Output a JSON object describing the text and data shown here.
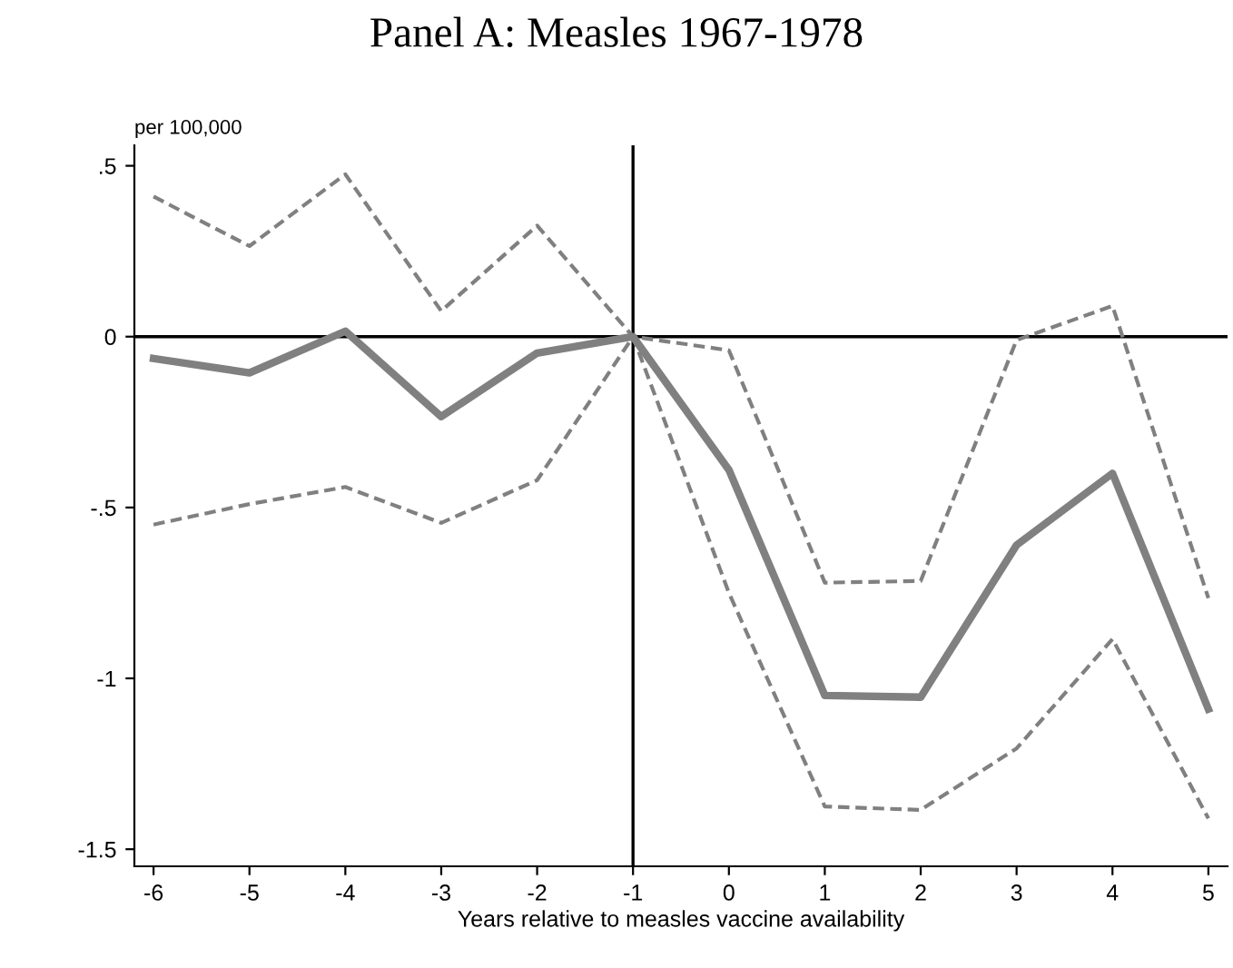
{
  "chart_data": {
    "type": "line",
    "title": "Panel A: Measles 1967-1978",
    "ylabel": "per 100,000",
    "xlabel": "Years relative to measles vaccine availability",
    "x": [
      -6,
      -5,
      -4,
      -3,
      -2,
      -1,
      0,
      1,
      2,
      3,
      4,
      5
    ],
    "series": [
      {
        "color": "#808080",
        "line_style": "solid",
        "values": [
          -0.064,
          -0.106,
          0.016,
          -0.234,
          -0.048,
          0,
          -0.39,
          -1.05,
          -1.055,
          -0.61,
          -0.4,
          -1.09
        ]
      },
      {
        "color": "#808080",
        "line_style": "dashed",
        "values": [
          0.41,
          0.265,
          0.475,
          0.075,
          0.325,
          0,
          -0.04,
          -0.72,
          -0.715,
          -0.01,
          0.09,
          -0.765
        ]
      },
      {
        "color": "#808080",
        "line_style": "dashed",
        "values": [
          -0.55,
          -0.49,
          -0.44,
          -0.545,
          -0.42,
          0,
          -0.75,
          -1.375,
          -1.385,
          -1.205,
          -0.885,
          -1.41
        ]
      }
    ],
    "xlim": [
      -6.2,
      5.2
    ],
    "ylim": [
      -1.55,
      0.56
    ],
    "xticks": [
      -6,
      -5,
      -4,
      -3,
      -2,
      -1,
      0,
      1,
      2,
      3,
      4,
      5
    ],
    "yticks": [
      {
        "value": 0.5,
        "label": ".5"
      },
      0,
      {
        "value": -0.5,
        "label": "-.5"
      },
      -1,
      -1.5
    ],
    "ref_lines": [
      {
        "axis": "y",
        "value": 0,
        "color": "#000000"
      },
      {
        "axis": "x",
        "value": -1,
        "color": "#000000"
      }
    ],
    "grid": false,
    "legend": false,
    "marker": "none"
  }
}
